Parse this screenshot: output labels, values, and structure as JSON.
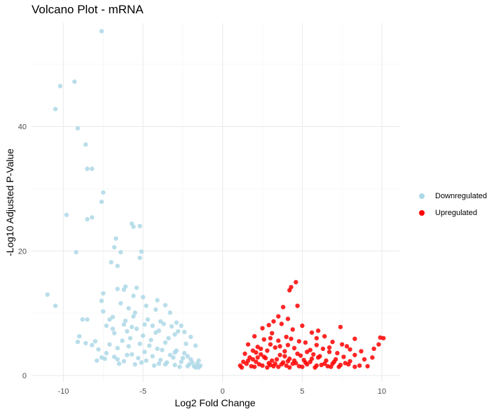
{
  "title": "Volcano Plot - mRNA",
  "colors": {
    "Downregulated": "#add8e6",
    "Upregulated": "#ff0000"
  },
  "chart_data": {
    "type": "scatter",
    "title": "Volcano Plot - mRNA",
    "xlabel": "Log2 Fold Change",
    "ylabel": "-Log10 Adjusted P-Value",
    "xlim": [
      -12,
      11.1
    ],
    "ylim": [
      -1,
      56.6
    ],
    "xticks": [
      -10,
      -5,
      0,
      5,
      10
    ],
    "yticks": [
      0,
      20,
      40
    ],
    "grid": true,
    "legend_position": "right",
    "series": [
      {
        "name": "Downregulated",
        "points": [
          [
            -7.6,
            55.3
          ],
          [
            -10.2,
            46.5
          ],
          [
            -9.3,
            47.2
          ],
          [
            -10.5,
            42.8
          ],
          [
            -9.1,
            39.7
          ],
          [
            -8.6,
            37.1
          ],
          [
            -8.5,
            33.2
          ],
          [
            -8.2,
            33.2
          ],
          [
            -7.5,
            29.4
          ],
          [
            -7.6,
            27.9
          ],
          [
            -9.8,
            25.8
          ],
          [
            -8.2,
            25.4
          ],
          [
            -8.5,
            25.1
          ],
          [
            -5.7,
            24.4
          ],
          [
            -5.6,
            23.9
          ],
          [
            -5.2,
            24.0
          ],
          [
            -9.2,
            19.8
          ],
          [
            -6.7,
            22.0
          ],
          [
            -6.8,
            20.6
          ],
          [
            -6.4,
            19.8
          ],
          [
            -5.1,
            19.9
          ],
          [
            -5.2,
            18.9
          ],
          [
            -7.0,
            18.2
          ],
          [
            -6.6,
            17.6
          ],
          [
            -11.0,
            13.0
          ],
          [
            -10.5,
            11.2
          ],
          [
            -6.1,
            14.3
          ],
          [
            -5.4,
            14.1
          ],
          [
            -6.6,
            13.9
          ],
          [
            -6.2,
            13.8
          ],
          [
            -7.5,
            13.2
          ],
          [
            -7.6,
            12.0
          ],
          [
            -5.6,
            12.8
          ],
          [
            -5.0,
            12.6
          ],
          [
            -4.1,
            12.1
          ],
          [
            -4.8,
            11.2
          ],
          [
            -6.4,
            11.6
          ],
          [
            -5.9,
            10.8
          ],
          [
            -7.5,
            10.3
          ],
          [
            -4.2,
            10.6
          ],
          [
            -3.6,
            11.3
          ],
          [
            -5.5,
            10.1
          ],
          [
            -6.9,
            9.4
          ],
          [
            -3.3,
            10.1
          ],
          [
            -8.8,
            9.0
          ],
          [
            -8.5,
            9.0
          ],
          [
            -7.1,
            9.0
          ],
          [
            -6.1,
            8.8
          ],
          [
            -5.6,
            9.5
          ],
          [
            -4.7,
            9.0
          ],
          [
            -3.9,
            8.7
          ],
          [
            -2.9,
            8.5
          ],
          [
            -7.3,
            8.0
          ],
          [
            -6.9,
            7.5
          ],
          [
            -6.2,
            8.2
          ],
          [
            -5.7,
            7.8
          ],
          [
            -4.9,
            8.2
          ],
          [
            -4.4,
            8.0
          ],
          [
            -3.7,
            8.3
          ],
          [
            -3.2,
            7.9
          ],
          [
            -2.6,
            8.0
          ],
          [
            -9.0,
            6.3
          ],
          [
            -8.6,
            5.2
          ],
          [
            -8.0,
            5.5
          ],
          [
            -6.8,
            6.8
          ],
          [
            -6.0,
            7.1
          ],
          [
            -5.4,
            7.5
          ],
          [
            -4.0,
            7.2
          ],
          [
            -2.8,
            7.1
          ],
          [
            -2.4,
            7.0
          ],
          [
            -9.1,
            5.4
          ],
          [
            -8.2,
            4.9
          ],
          [
            -7.1,
            5.0
          ],
          [
            -6.3,
            5.6
          ],
          [
            -5.0,
            6.4
          ],
          [
            -3.0,
            6.6
          ],
          [
            -2.0,
            6.2
          ],
          [
            -7.8,
            4.2
          ],
          [
            -7.3,
            3.6
          ],
          [
            -6.6,
            4.4
          ],
          [
            -5.9,
            4.7
          ],
          [
            -4.6,
            4.8
          ],
          [
            -3.6,
            5.3
          ],
          [
            -2.3,
            5.1
          ],
          [
            -1.7,
            4.8
          ],
          [
            -7.9,
            2.4
          ],
          [
            -7.4,
            2.7
          ],
          [
            -7.6,
            2.9
          ],
          [
            -6.2,
            2.3
          ],
          [
            -5.1,
            2.1
          ],
          [
            -4.0,
            1.9
          ],
          [
            -3.0,
            1.7
          ],
          [
            -1.8,
            1.5
          ],
          [
            -1.4,
            1.6
          ],
          [
            -6.8,
            3.0
          ],
          [
            -5.7,
            3.4
          ],
          [
            -4.4,
            3.1
          ],
          [
            -3.3,
            3.3
          ],
          [
            -2.0,
            2.6
          ],
          [
            -1.5,
            2.4
          ],
          [
            -5.3,
            2.8
          ],
          [
            -3.9,
            2.5
          ],
          [
            -2.6,
            2.2
          ],
          [
            -4.9,
            3.8
          ],
          [
            -2.9,
            4.0
          ],
          [
            -2.2,
            3.1
          ],
          [
            -1.9,
            2.1
          ],
          [
            -1.6,
            1.9
          ],
          [
            -4.3,
            1.6
          ],
          [
            -3.5,
            2.1
          ],
          [
            -2.7,
            1.4
          ],
          [
            -2.1,
            1.8
          ],
          [
            -5.5,
            1.8
          ],
          [
            -6.5,
            1.9
          ],
          [
            -3.8,
            4.1
          ],
          [
            -4.8,
            2.4
          ],
          [
            -3.1,
            2.9
          ],
          [
            -2.4,
            3.6
          ],
          [
            -1.7,
            1.3
          ],
          [
            -4.5,
            5.7
          ],
          [
            -3.4,
            6.0
          ],
          [
            -5.8,
            6.0
          ],
          [
            -4.2,
            6.9
          ],
          [
            -3.0,
            3.7
          ],
          [
            -2.5,
            2.8
          ],
          [
            -6.6,
            2.6
          ],
          [
            -5.2,
            5.1
          ],
          [
            -4.1,
            4.3
          ],
          [
            -3.6,
            1.8
          ],
          [
            -2.2,
            1.5
          ],
          [
            -1.5,
            1.3
          ],
          [
            -6.0,
            3.3
          ]
        ]
      },
      {
        "name": "Upregulated",
        "points": [
          [
            4.6,
            15.0
          ],
          [
            4.3,
            14.2
          ],
          [
            4.2,
            13.7
          ],
          [
            4.7,
            11.2
          ],
          [
            3.8,
            11.0
          ],
          [
            3.5,
            9.5
          ],
          [
            4.1,
            9.1
          ],
          [
            3.2,
            8.7
          ],
          [
            3.7,
            8.3
          ],
          [
            2.9,
            8.1
          ],
          [
            5.0,
            8.0
          ],
          [
            7.4,
            7.8
          ],
          [
            2.5,
            7.6
          ],
          [
            4.4,
            7.4
          ],
          [
            6.0,
            7.2
          ],
          [
            5.6,
            6.9
          ],
          [
            3.1,
            6.8
          ],
          [
            6.4,
            6.3
          ],
          [
            2.0,
            6.3
          ],
          [
            4.0,
            6.2
          ],
          [
            8.3,
            5.9
          ],
          [
            9.9,
            6.1
          ],
          [
            10.1,
            6.0
          ],
          [
            2.6,
            5.8
          ],
          [
            3.5,
            5.6
          ],
          [
            4.8,
            5.5
          ],
          [
            5.2,
            5.3
          ],
          [
            6.9,
            5.4
          ],
          [
            9.8,
            5.0
          ],
          [
            1.6,
            5.0
          ],
          [
            3.0,
            5.0
          ],
          [
            4.1,
            4.9
          ],
          [
            5.9,
            4.9
          ],
          [
            7.8,
            4.7
          ],
          [
            2.2,
            4.6
          ],
          [
            3.3,
            4.5
          ],
          [
            4.5,
            4.4
          ],
          [
            6.3,
            4.3
          ],
          [
            8.0,
            4.2
          ],
          [
            9.5,
            4.3
          ],
          [
            1.9,
            4.0
          ],
          [
            2.8,
            4.0
          ],
          [
            3.9,
            3.9
          ],
          [
            5.3,
            3.8
          ],
          [
            6.7,
            3.8
          ],
          [
            7.2,
            3.6
          ],
          [
            8.7,
            3.9
          ],
          [
            1.4,
            3.5
          ],
          [
            2.4,
            3.4
          ],
          [
            3.6,
            3.3
          ],
          [
            4.9,
            3.2
          ],
          [
            5.7,
            3.4
          ],
          [
            6.1,
            3.1
          ],
          [
            7.6,
            3.0
          ],
          [
            8.3,
            3.3
          ],
          [
            1.7,
            2.9
          ],
          [
            2.7,
            2.8
          ],
          [
            3.4,
            2.6
          ],
          [
            4.2,
            2.7
          ],
          [
            5.1,
            2.5
          ],
          [
            6.5,
            2.4
          ],
          [
            7.1,
            2.6
          ],
          [
            8.0,
            2.3
          ],
          [
            1.3,
            2.2
          ],
          [
            2.1,
            2.2
          ],
          [
            2.9,
            2.0
          ],
          [
            3.8,
            2.1
          ],
          [
            4.6,
            2.0
          ],
          [
            5.5,
            2.2
          ],
          [
            6.9,
            1.9
          ],
          [
            7.9,
            1.8
          ],
          [
            1.1,
            1.6
          ],
          [
            1.8,
            1.5
          ],
          [
            2.5,
            1.6
          ],
          [
            3.2,
            1.5
          ],
          [
            4.0,
            1.6
          ],
          [
            4.8,
            1.5
          ],
          [
            5.9,
            1.6
          ],
          [
            6.6,
            1.5
          ],
          [
            7.4,
            1.7
          ],
          [
            1.5,
            1.9
          ],
          [
            2.3,
            1.8
          ],
          [
            3.0,
            1.7
          ],
          [
            3.7,
            1.8
          ],
          [
            4.4,
            1.9
          ],
          [
            5.3,
            1.8
          ],
          [
            6.2,
            1.7
          ],
          [
            7.7,
            2.0
          ],
          [
            8.6,
            1.6
          ],
          [
            9.1,
            1.5
          ],
          [
            8.3,
            1.4
          ],
          [
            1.2,
            1.3
          ],
          [
            2.0,
            1.4
          ],
          [
            2.8,
            1.3
          ],
          [
            3.5,
            1.4
          ],
          [
            4.2,
            1.3
          ],
          [
            5.0,
            1.4
          ],
          [
            5.8,
            1.3
          ],
          [
            6.8,
            1.4
          ],
          [
            1.9,
            2.6
          ],
          [
            3.1,
            2.4
          ],
          [
            4.5,
            2.4
          ],
          [
            5.6,
            2.7
          ],
          [
            6.0,
            2.9
          ],
          [
            7.0,
            2.2
          ],
          [
            2.6,
            3.0
          ],
          [
            3.9,
            3.1
          ],
          [
            4.7,
            3.5
          ],
          [
            5.5,
            4.1
          ],
          [
            6.7,
            4.5
          ],
          [
            2.4,
            4.3
          ],
          [
            3.6,
            4.7
          ],
          [
            4.3,
            5.9
          ],
          [
            3.0,
            6.0
          ],
          [
            5.9,
            6.0
          ],
          [
            7.5,
            5.0
          ],
          [
            2.1,
            3.7
          ],
          [
            1.6,
            2.4
          ],
          [
            8.9,
            2.6
          ],
          [
            9.4,
            2.9
          ],
          [
            4.1,
            2.3
          ],
          [
            3.3,
            1.9
          ],
          [
            2.2,
            2.9
          ],
          [
            5.2,
            2.1
          ],
          [
            6.4,
            1.9
          ],
          [
            7.3,
            1.4
          ]
        ]
      }
    ]
  }
}
